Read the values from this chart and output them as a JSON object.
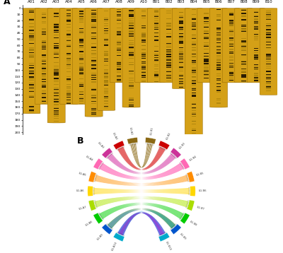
{
  "chromosomes": [
    "A01",
    "A02",
    "A03",
    "A04",
    "A05",
    "A06",
    "A07",
    "A08",
    "A09",
    "A10",
    "B01",
    "B02",
    "B03",
    "B04",
    "B05",
    "B06",
    "B07",
    "B08",
    "B09",
    "B10"
  ],
  "chr_lengths": [
    170,
    155,
    185,
    155,
    155,
    175,
    165,
    120,
    160,
    120,
    120,
    120,
    130,
    210,
    120,
    160,
    120,
    120,
    120,
    140
  ],
  "chr_color_main": "#D4A017",
  "chr_color_dark": "#1a1000",
  "y_max": 200,
  "background": "#ffffff",
  "panel_a_label": "A",
  "panel_b_label": "B",
  "block_colors_left": [
    "#8B6914",
    "#cc0000",
    "#cc3399",
    "#ff69b4",
    "#ff8c00",
    "#ffd700",
    "#aadd00",
    "#00cc00",
    "#0055cc",
    "#00aacc"
  ],
  "block_colors_right": [
    "#8B6914",
    "#cc0000",
    "#cc3399",
    "#ff69b4",
    "#ff8c00",
    "#ffd700",
    "#aadd00",
    "#00cc00",
    "#0055cc",
    "#00aacc"
  ],
  "ribbon_colors": [
    "#8B6914",
    "#cc0000",
    "#ee4444",
    "#cc3399",
    "#ee66bb",
    "#ff69b4",
    "#ffaad4",
    "#ff8c00",
    "#ffbb55",
    "#ffd700",
    "#ffee88",
    "#aadd00",
    "#ccee66",
    "#00cc00",
    "#66dd66",
    "#006600",
    "#228822",
    "#0000cc",
    "#3344ee",
    "#6699ff",
    "#99bbff",
    "#00aacc",
    "#44ccee",
    "#00cccc",
    "#66eeee",
    "#cc00cc",
    "#ee44ee"
  ],
  "circos_left_labels": [
    "LG-A1",
    "LG-A2",
    "LG-A3",
    "LG-A4",
    "LG-A5",
    "LG-A6",
    "LG-A7",
    "LG-A8",
    "LG-A9",
    "LG-A10"
  ],
  "circos_right_labels": [
    "LG-B1",
    "LG-B2",
    "LG-B3",
    "LG-B4",
    "LG-B5",
    "LG-B6",
    "LG-B7",
    "LG-B8",
    "LG-B9",
    "LG-B10"
  ]
}
